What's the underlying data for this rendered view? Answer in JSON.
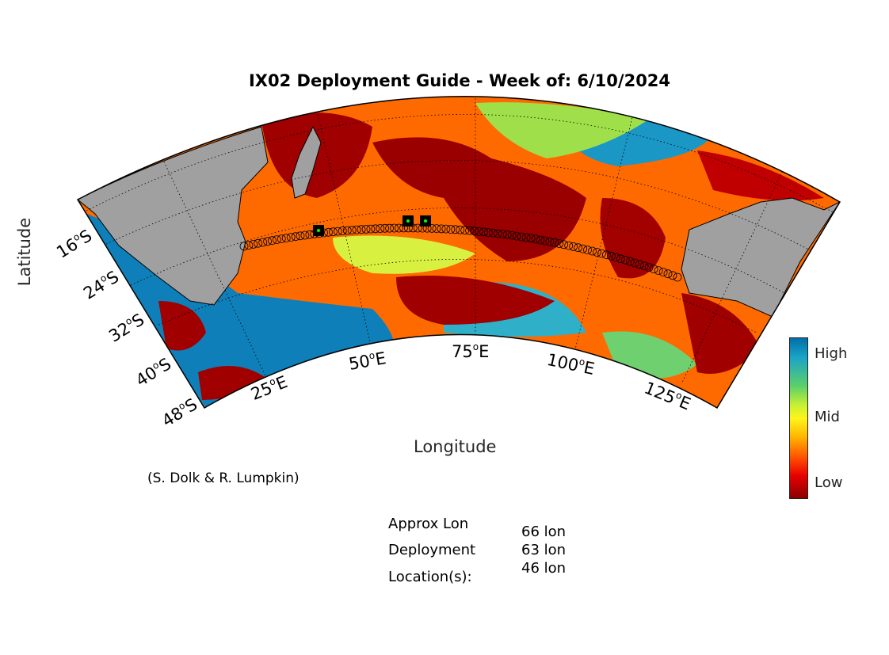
{
  "title": "IX02 Deployment Guide - Week of: 6/10/2024",
  "axes": {
    "xlabel": "Longitude",
    "ylabel": "Latitude",
    "lon_ticks": [
      "25",
      "50",
      "75",
      "100",
      "125"
    ],
    "lat_ticks": [
      "16",
      "24",
      "32",
      "40",
      "48"
    ],
    "lon_suffix": "E",
    "lat_suffix": "S",
    "degree_symbol": "o"
  },
  "credit": "(S. Dolk & R. Lumpkin)",
  "colorbar": {
    "high": "High",
    "mid": "Mid",
    "low": "Low",
    "colors": [
      "#006fa8",
      "#5dd06a",
      "#fff51a",
      "#ff4e00",
      "#8a0000"
    ]
  },
  "deployment": {
    "label_line1": "Approx Lon",
    "label_line2": "Deployment",
    "label_line3": "Location(s):",
    "locations": [
      "66 lon",
      "63 lon",
      "46 lon"
    ]
  },
  "map_colors": {
    "land": "#a0a0a0",
    "high": "#006fa8",
    "mid": "#fff51a",
    "low": "#8a0000"
  }
}
